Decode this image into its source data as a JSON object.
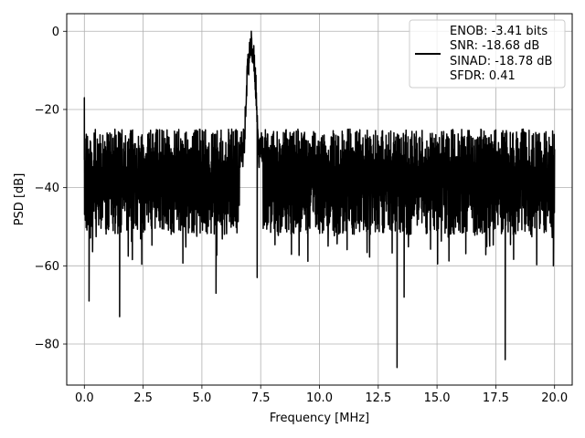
{
  "chart_data": {
    "type": "line",
    "title": "",
    "xlabel": "Frequency [MHz]",
    "ylabel": "PSD [dB]",
    "xlim": [
      -0.75,
      20.75
    ],
    "ylim": [
      -90.5,
      4.5
    ],
    "xticks": [
      0.0,
      2.5,
      5.0,
      7.5,
      10.0,
      12.5,
      15.0,
      17.5,
      20.0
    ],
    "xtick_labels": [
      "0.0",
      "2.5",
      "5.0",
      "7.5",
      "10.0",
      "12.5",
      "15.0",
      "17.5",
      "20.0"
    ],
    "yticks": [
      0,
      -20,
      -40,
      -60,
      -80
    ],
    "ytick_labels": [
      "0",
      "−20",
      "−40",
      "−60",
      "−80"
    ],
    "grid": true,
    "legend_position": "top-right",
    "legend_lines": [
      "ENOB: -3.41 bits",
      "SNR: -18.68 dB",
      "SINAD: -18.78 dB",
      "SFDR: 0.41"
    ],
    "line_color": "#000000",
    "series": [
      {
        "x_range": [
          0,
          20
        ],
        "peak": {
          "x": 7.1,
          "y": 0
        },
        "noise_floor_upper": -25,
        "noise_floor_lower": -50,
        "notable_points": [
          {
            "x": 0.0,
            "y": -17
          },
          {
            "x": 0.2,
            "y": -69
          },
          {
            "x": 1.5,
            "y": -73
          },
          {
            "x": 5.6,
            "y": -67
          },
          {
            "x": 7.35,
            "y": -63
          },
          {
            "x": 13.3,
            "y": -86
          },
          {
            "x": 13.6,
            "y": -68
          },
          {
            "x": 17.9,
            "y": -84
          },
          {
            "x": 19.95,
            "y": -60
          }
        ]
      }
    ]
  }
}
